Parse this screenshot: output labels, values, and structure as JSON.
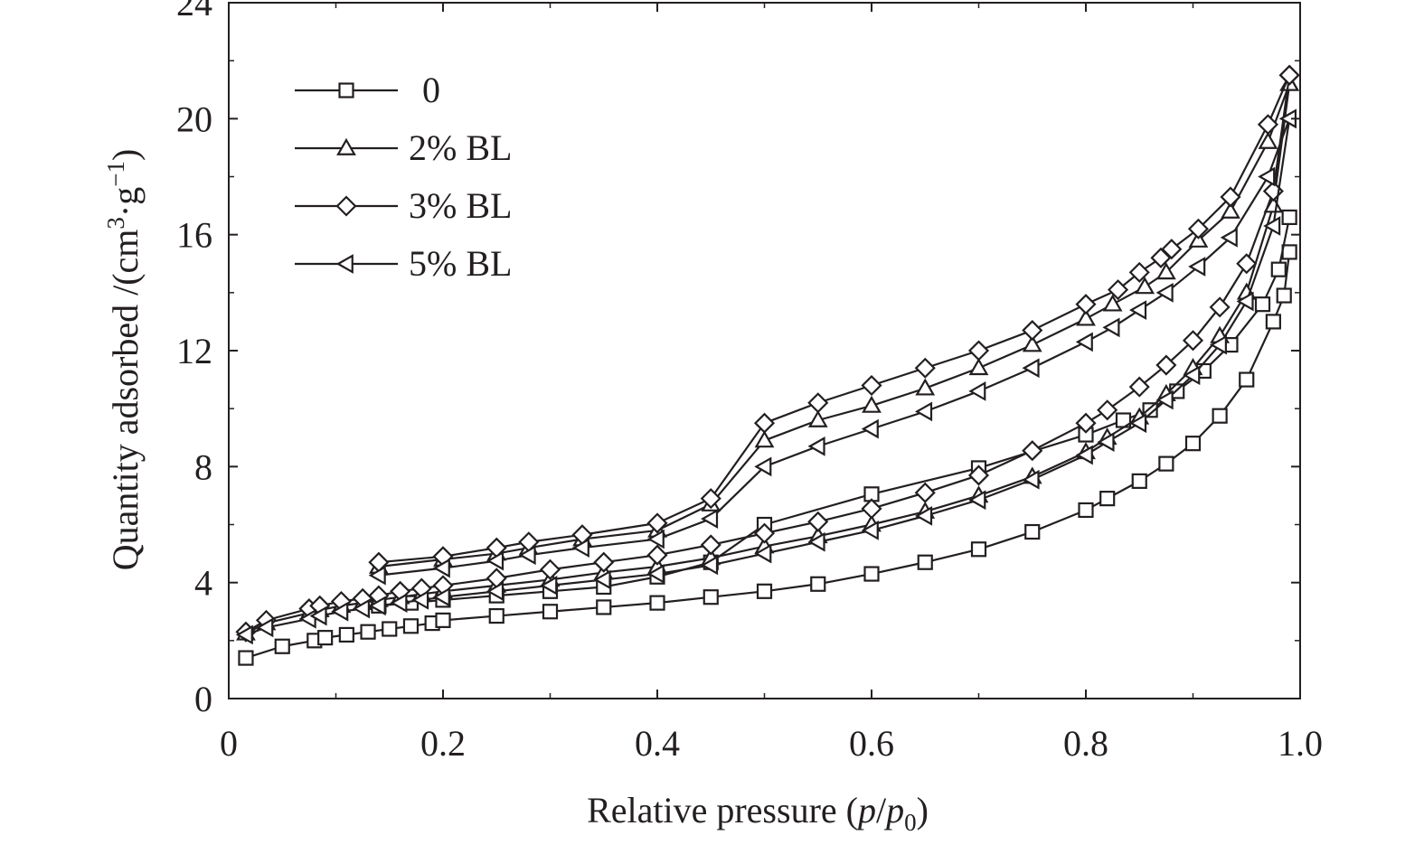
{
  "chart_data": {
    "type": "line",
    "title": "",
    "xlabel": "Relative pressure (p/p0)",
    "xlabel_parts": {
      "prefix": "Relative pressure (",
      "p": "p",
      "slash": "/",
      "p0": "p",
      "sub0": "0",
      "suffix": ")"
    },
    "ylabel": "Quantity adsorbed /(cm3·g−1)",
    "ylabel_parts": {
      "prefix": "Quantity adsorbed /(cm",
      "sup3": "3",
      "mid": "·g",
      "supneg1": "−1",
      "suffix": ")"
    },
    "xlim": [
      0,
      1.0
    ],
    "ylim": [
      0,
      24
    ],
    "xticks": [
      "0",
      "0.2",
      "0.4",
      "0.6",
      "0.8",
      "1.0"
    ],
    "yticks": [
      "0",
      "4",
      "8",
      "12",
      "16",
      "20",
      "24"
    ],
    "grid": false,
    "legend_position": "top-left",
    "color": "#231f20",
    "series": [
      {
        "name": "0",
        "marker": "square",
        "adsorption": {
          "x": [
            0.016,
            0.05,
            0.08,
            0.09,
            0.11,
            0.13,
            0.15,
            0.17,
            0.19,
            0.2,
            0.25,
            0.3,
            0.35,
            0.4,
            0.45,
            0.5,
            0.55,
            0.6,
            0.65,
            0.7,
            0.75,
            0.8,
            0.82,
            0.85,
            0.875,
            0.9,
            0.925,
            0.95,
            0.975,
            0.985,
            0.99
          ],
          "y": [
            1.4,
            1.8,
            2.0,
            2.1,
            2.2,
            2.3,
            2.4,
            2.5,
            2.6,
            2.7,
            2.85,
            3.0,
            3.15,
            3.3,
            3.5,
            3.7,
            3.95,
            4.3,
            4.7,
            5.15,
            5.75,
            6.5,
            6.9,
            7.5,
            8.1,
            8.8,
            9.75,
            11.0,
            13.0,
            13.9,
            15.4
          ]
        },
        "desorption": {
          "x": [
            0.99,
            0.98,
            0.965,
            0.935,
            0.91,
            0.885,
            0.86,
            0.835,
            0.8,
            0.7,
            0.6,
            0.5,
            0.45,
            0.4,
            0.35,
            0.3,
            0.25,
            0.2,
            0.17,
            0.14
          ],
          "y": [
            16.6,
            14.8,
            13.6,
            12.2,
            11.3,
            10.6,
            9.95,
            9.6,
            9.1,
            7.95,
            7.05,
            6.0,
            4.7,
            4.2,
            3.85,
            3.7,
            3.55,
            3.4,
            3.3,
            3.2
          ]
        }
      },
      {
        "name": "2% BL",
        "marker": "triangle-up",
        "adsorption": {
          "x": [
            0.016,
            0.035,
            0.075,
            0.085,
            0.105,
            0.125,
            0.14,
            0.16,
            0.18,
            0.2,
            0.25,
            0.3,
            0.35,
            0.4,
            0.45,
            0.5,
            0.55,
            0.6,
            0.65,
            0.7,
            0.75,
            0.8,
            0.82,
            0.85,
            0.875,
            0.9,
            0.925,
            0.95,
            0.975,
            0.99
          ],
          "y": [
            2.25,
            2.6,
            2.95,
            3.05,
            3.2,
            3.3,
            3.4,
            3.5,
            3.6,
            3.7,
            3.9,
            4.1,
            4.35,
            4.55,
            4.85,
            5.25,
            5.6,
            6.0,
            6.45,
            7.0,
            7.65,
            8.5,
            9.0,
            9.7,
            10.5,
            11.4,
            12.5,
            14.0,
            17.0,
            21.2
          ]
        },
        "desorption": {
          "x": [
            0.99,
            0.97,
            0.935,
            0.905,
            0.875,
            0.855,
            0.825,
            0.8,
            0.75,
            0.7,
            0.65,
            0.6,
            0.55,
            0.5,
            0.45,
            0.4,
            0.33,
            0.28,
            0.25,
            0.2,
            0.14
          ],
          "y": [
            21.2,
            19.2,
            16.8,
            15.8,
            14.7,
            14.2,
            13.6,
            13.1,
            12.2,
            11.4,
            10.7,
            10.1,
            9.6,
            8.9,
            6.7,
            5.8,
            5.5,
            5.2,
            5.0,
            4.8,
            4.55
          ]
        }
      },
      {
        "name": "3% BL",
        "marker": "diamond",
        "adsorption": {
          "x": [
            0.016,
            0.035,
            0.075,
            0.085,
            0.105,
            0.125,
            0.14,
            0.16,
            0.18,
            0.2,
            0.25,
            0.3,
            0.35,
            0.4,
            0.45,
            0.5,
            0.55,
            0.6,
            0.65,
            0.7,
            0.75,
            0.8,
            0.82,
            0.85,
            0.875,
            0.9,
            0.925,
            0.95,
            0.975,
            0.99
          ],
          "y": [
            2.3,
            2.7,
            3.1,
            3.2,
            3.35,
            3.45,
            3.55,
            3.7,
            3.8,
            3.9,
            4.15,
            4.45,
            4.7,
            4.95,
            5.3,
            5.7,
            6.1,
            6.55,
            7.1,
            7.7,
            8.55,
            9.5,
            9.95,
            10.75,
            11.5,
            12.35,
            13.5,
            15.0,
            17.5,
            21.5
          ]
        },
        "desorption": {
          "x": [
            0.99,
            0.97,
            0.935,
            0.905,
            0.88,
            0.87,
            0.85,
            0.83,
            0.8,
            0.75,
            0.7,
            0.65,
            0.6,
            0.55,
            0.5,
            0.45,
            0.4,
            0.33,
            0.28,
            0.25,
            0.2,
            0.14
          ],
          "y": [
            21.5,
            19.8,
            17.3,
            16.2,
            15.5,
            15.2,
            14.7,
            14.1,
            13.6,
            12.7,
            12.0,
            11.4,
            10.8,
            10.2,
            9.5,
            6.9,
            6.05,
            5.65,
            5.4,
            5.2,
            4.9,
            4.7
          ]
        }
      },
      {
        "name": "5% BL",
        "marker": "triangle-left",
        "adsorption": {
          "x": [
            0.016,
            0.035,
            0.075,
            0.085,
            0.105,
            0.125,
            0.14,
            0.16,
            0.18,
            0.2,
            0.25,
            0.3,
            0.35,
            0.4,
            0.45,
            0.5,
            0.55,
            0.6,
            0.65,
            0.7,
            0.75,
            0.8,
            0.82,
            0.85,
            0.875,
            0.9,
            0.925,
            0.95,
            0.975,
            0.99
          ],
          "y": [
            2.2,
            2.45,
            2.75,
            2.85,
            3.0,
            3.1,
            3.2,
            3.3,
            3.4,
            3.5,
            3.7,
            3.9,
            4.1,
            4.3,
            4.6,
            5.0,
            5.4,
            5.8,
            6.3,
            6.85,
            7.55,
            8.4,
            8.85,
            9.5,
            10.3,
            11.15,
            12.2,
            13.7,
            16.3,
            20.0
          ]
        },
        "desorption": {
          "x": [
            0.99,
            0.97,
            0.935,
            0.905,
            0.875,
            0.85,
            0.825,
            0.8,
            0.75,
            0.7,
            0.65,
            0.6,
            0.55,
            0.5,
            0.45,
            0.4,
            0.33,
            0.28,
            0.25,
            0.2,
            0.14
          ],
          "y": [
            20.0,
            18.0,
            15.9,
            14.9,
            14.0,
            13.4,
            12.8,
            12.3,
            11.4,
            10.6,
            9.9,
            9.3,
            8.7,
            8.0,
            6.2,
            5.5,
            5.2,
            4.95,
            4.75,
            4.5,
            4.25
          ]
        }
      }
    ]
  }
}
